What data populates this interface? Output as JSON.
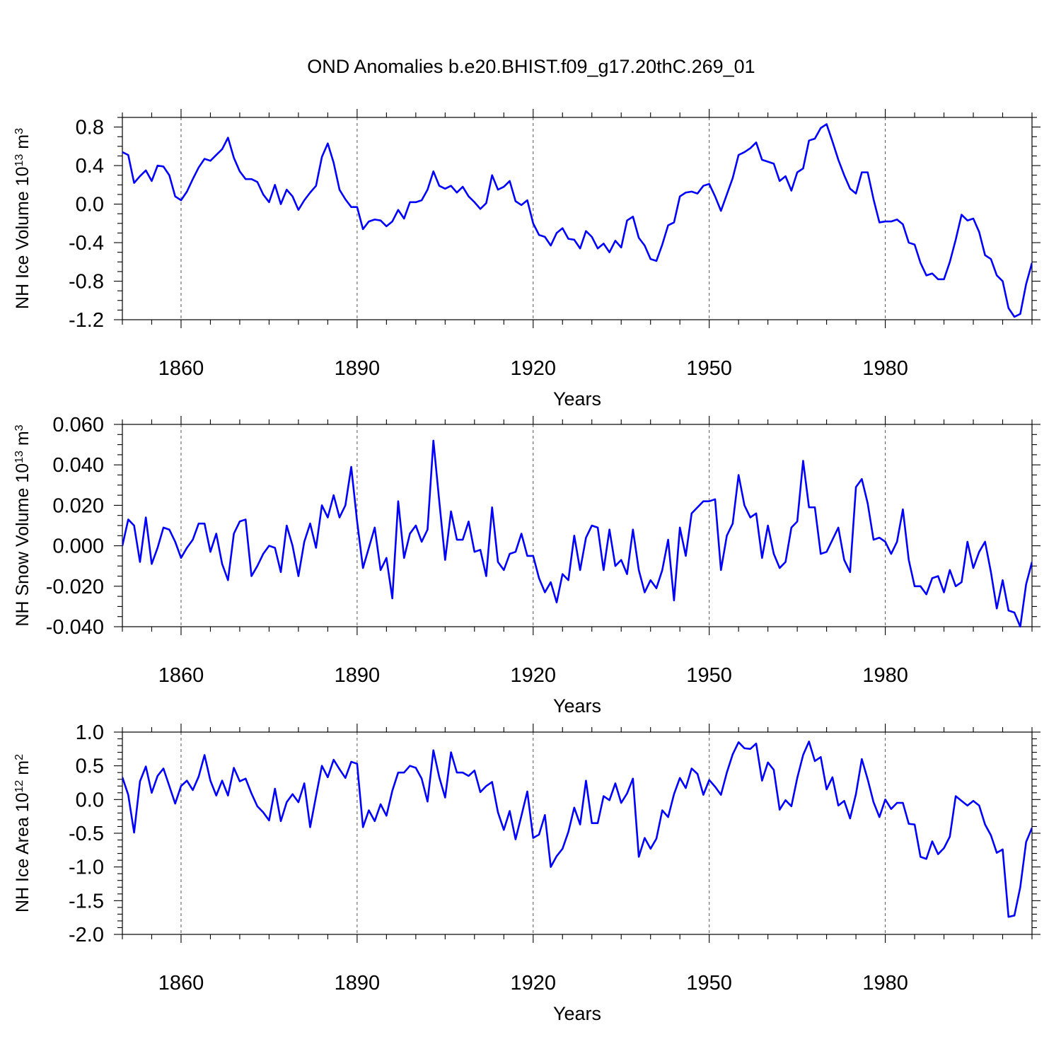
{
  "figure_title": "OND Anomalies b.e20.BHIST.f09_g17.20thC.269_01",
  "colors": {
    "series": "#0000ff",
    "axes": "#000000",
    "grid": "#555555"
  },
  "chart_data": [
    {
      "type": "line",
      "title": "",
      "xlabel": "Years",
      "ylabel_main": "NH Ice Volume 10",
      "ylabel_exp": "13",
      "ylabel_unit": " m",
      "ylabel_unit_exp": "3",
      "xlim": [
        1850,
        2005
      ],
      "ylim": [
        -1.2,
        0.9
      ],
      "ytick_values": [
        -1.2,
        -0.8,
        -0.4,
        0.0,
        0.4,
        0.8
      ],
      "ytick_labels": [
        "-1.2",
        "-0.8",
        "-0.4",
        "0.0",
        "0.4",
        "0.8"
      ],
      "ytick_minor_step": 0.1,
      "xtick_values": [
        1860,
        1890,
        1920,
        1950,
        1980
      ],
      "xtick_labels": [
        "1860",
        "1890",
        "1920",
        "1950",
        "1980"
      ],
      "grid": "dashed vertical at major x ticks",
      "series": [
        {
          "name": "NH Ice Volume",
          "x_start": 1850,
          "values": [
            0.54,
            0.51,
            0.22,
            0.29,
            0.35,
            0.24,
            0.4,
            0.39,
            0.3,
            0.08,
            0.04,
            0.13,
            0.26,
            0.38,
            0.47,
            0.45,
            0.51,
            0.57,
            0.69,
            0.48,
            0.34,
            0.26,
            0.26,
            0.23,
            0.1,
            0.02,
            0.2,
            0.0,
            0.15,
            0.08,
            -0.06,
            0.04,
            0.12,
            0.19,
            0.49,
            0.63,
            0.43,
            0.15,
            0.05,
            -0.03,
            -0.03,
            -0.26,
            -0.18,
            -0.16,
            -0.17,
            -0.23,
            -0.18,
            -0.06,
            -0.15,
            0.02,
            0.02,
            0.04,
            0.15,
            0.34,
            0.19,
            0.16,
            0.19,
            0.12,
            0.18,
            0.08,
            0.02,
            -0.05,
            0.01,
            0.3,
            0.15,
            0.18,
            0.24,
            0.03,
            -0.01,
            0.04,
            -0.2,
            -0.32,
            -0.34,
            -0.43,
            -0.3,
            -0.25,
            -0.36,
            -0.37,
            -0.46,
            -0.28,
            -0.34,
            -0.46,
            -0.41,
            -0.5,
            -0.38,
            -0.45,
            -0.17,
            -0.13,
            -0.35,
            -0.43,
            -0.57,
            -0.59,
            -0.42,
            -0.22,
            -0.19,
            0.08,
            0.12,
            0.13,
            0.11,
            0.19,
            0.21,
            0.08,
            -0.07,
            0.1,
            0.27,
            0.51,
            0.54,
            0.58,
            0.64,
            0.46,
            0.44,
            0.42,
            0.24,
            0.29,
            0.14,
            0.33,
            0.37,
            0.66,
            0.68,
            0.79,
            0.83,
            0.65,
            0.46,
            0.3,
            0.16,
            0.11,
            0.33,
            0.33,
            0.05,
            -0.19,
            -0.18,
            -0.18,
            -0.16,
            -0.21,
            -0.4,
            -0.42,
            -0.61,
            -0.74,
            -0.72,
            -0.78,
            -0.78,
            -0.6,
            -0.37,
            -0.11,
            -0.17,
            -0.15,
            -0.29,
            -0.53,
            -0.57,
            -0.74,
            -0.8,
            -1.08,
            -1.17,
            -1.14,
            -0.83,
            -0.61
          ]
        }
      ]
    },
    {
      "type": "line",
      "title": "",
      "xlabel": "Years",
      "ylabel_main": "NH Snow Volume 10",
      "ylabel_exp": "13",
      "ylabel_unit": " m",
      "ylabel_unit_exp": "3",
      "xlim": [
        1850,
        2005
      ],
      "ylim": [
        -0.04,
        0.06
      ],
      "ytick_values": [
        -0.04,
        -0.02,
        0.0,
        0.02,
        0.04,
        0.06
      ],
      "ytick_labels": [
        "-0.040",
        "-0.020",
        "0.000",
        "0.020",
        "0.040",
        "0.060"
      ],
      "ytick_minor_step": 0.005,
      "xtick_values": [
        1860,
        1890,
        1920,
        1950,
        1980
      ],
      "xtick_labels": [
        "1860",
        "1890",
        "1920",
        "1950",
        "1980"
      ],
      "grid": "dashed vertical at major x ticks",
      "series": [
        {
          "name": "NH Snow Volume",
          "x_start": 1850,
          "values": [
            0.0,
            0.013,
            0.01,
            -0.008,
            0.014,
            -0.009,
            -0.001,
            0.009,
            0.008,
            0.002,
            -0.006,
            -0.001,
            0.003,
            0.011,
            0.011,
            -0.003,
            0.006,
            -0.009,
            -0.017,
            0.006,
            0.012,
            0.013,
            -0.015,
            -0.01,
            -0.004,
            0.0,
            -0.001,
            -0.013,
            0.01,
            0.0,
            -0.015,
            0.002,
            0.011,
            -0.001,
            0.02,
            0.014,
            0.025,
            0.014,
            0.02,
            0.039,
            0.012,
            -0.011,
            -0.001,
            0.009,
            -0.012,
            -0.006,
            -0.026,
            0.022,
            -0.006,
            0.006,
            0.01,
            0.002,
            0.008,
            0.052,
            0.022,
            -0.007,
            0.017,
            0.003,
            0.003,
            0.012,
            -0.003,
            -0.002,
            -0.015,
            0.019,
            -0.008,
            -0.012,
            -0.004,
            -0.003,
            0.006,
            -0.005,
            -0.005,
            -0.016,
            -0.023,
            -0.018,
            -0.028,
            -0.014,
            -0.017,
            0.005,
            -0.012,
            0.004,
            0.01,
            0.009,
            -0.012,
            0.008,
            -0.01,
            -0.007,
            -0.014,
            0.008,
            -0.012,
            -0.023,
            -0.017,
            -0.021,
            -0.012,
            0.003,
            -0.027,
            0.009,
            -0.005,
            0.016,
            0.019,
            0.022,
            0.022,
            0.023,
            -0.012,
            0.005,
            0.011,
            0.035,
            0.02,
            0.014,
            0.016,
            -0.006,
            0.01,
            -0.004,
            -0.011,
            -0.008,
            0.009,
            0.012,
            0.042,
            0.019,
            0.019,
            -0.004,
            -0.003,
            0.003,
            0.009,
            -0.007,
            -0.013,
            0.029,
            0.033,
            0.021,
            0.003,
            0.004,
            0.002,
            -0.004,
            0.002,
            0.018,
            -0.007,
            -0.02,
            -0.02,
            -0.024,
            -0.016,
            -0.015,
            -0.023,
            -0.012,
            -0.02,
            -0.018,
            0.002,
            -0.011,
            -0.003,
            0.002,
            -0.013,
            -0.031,
            -0.017,
            -0.032,
            -0.033,
            -0.04,
            -0.019,
            -0.008
          ]
        }
      ]
    },
    {
      "type": "line",
      "title": "",
      "xlabel": "Years",
      "ylabel_main": "NH Ice Area 10",
      "ylabel_exp": "12",
      "ylabel_unit": " m",
      "ylabel_unit_exp": "2",
      "xlim": [
        1850,
        2005
      ],
      "ylim": [
        -2.0,
        1.0
      ],
      "ytick_values": [
        -2.0,
        -1.5,
        -1.0,
        -0.5,
        0.0,
        0.5,
        1.0
      ],
      "ytick_labels": [
        "-2.0",
        "-1.5",
        "-1.0",
        "-0.5",
        "0.0",
        "0.5",
        "1.0"
      ],
      "ytick_minor_step": 0.1,
      "xtick_values": [
        1860,
        1890,
        1920,
        1950,
        1980
      ],
      "xtick_labels": [
        "1860",
        "1890",
        "1920",
        "1950",
        "1980"
      ],
      "grid": "dashed vertical at major x ticks",
      "series": [
        {
          "name": "NH Ice Area",
          "x_start": 1850,
          "values": [
            0.33,
            0.07,
            -0.49,
            0.27,
            0.49,
            0.1,
            0.35,
            0.46,
            0.2,
            -0.06,
            0.2,
            0.28,
            0.14,
            0.34,
            0.66,
            0.28,
            0.06,
            0.28,
            0.06,
            0.47,
            0.27,
            0.31,
            0.09,
            -0.1,
            -0.19,
            -0.31,
            0.16,
            -0.32,
            -0.04,
            0.08,
            -0.04,
            0.24,
            -0.41,
            0.05,
            0.5,
            0.33,
            0.59,
            0.45,
            0.32,
            0.56,
            0.53,
            -0.41,
            -0.16,
            -0.32,
            -0.07,
            -0.24,
            0.13,
            0.4,
            0.4,
            0.5,
            0.47,
            0.31,
            -0.03,
            0.73,
            0.33,
            0.03,
            0.7,
            0.4,
            0.4,
            0.35,
            0.43,
            0.11,
            0.2,
            0.26,
            -0.19,
            -0.45,
            -0.17,
            -0.59,
            -0.24,
            0.12,
            -0.57,
            -0.52,
            -0.23,
            -1.0,
            -0.84,
            -0.73,
            -0.48,
            -0.12,
            -0.37,
            0.28,
            -0.35,
            -0.35,
            0.05,
            -0.01,
            0.24,
            -0.05,
            0.09,
            0.31,
            -0.85,
            -0.57,
            -0.73,
            -0.58,
            -0.16,
            -0.26,
            0.08,
            0.32,
            0.17,
            0.46,
            0.38,
            0.07,
            0.29,
            0.19,
            0.07,
            0.4,
            0.67,
            0.85,
            0.76,
            0.75,
            0.83,
            0.28,
            0.55,
            0.44,
            -0.15,
            -0.01,
            -0.1,
            0.32,
            0.66,
            0.86,
            0.57,
            0.63,
            0.15,
            0.33,
            -0.09,
            -0.02,
            -0.28,
            0.08,
            0.6,
            0.3,
            -0.04,
            -0.26,
            0.0,
            -0.14,
            -0.05,
            -0.05,
            -0.36,
            -0.37,
            -0.85,
            -0.88,
            -0.62,
            -0.81,
            -0.72,
            -0.55,
            0.05,
            -0.02,
            -0.09,
            -0.02,
            -0.09,
            -0.37,
            -0.53,
            -0.79,
            -0.74,
            -1.74,
            -1.72,
            -1.3,
            -0.63,
            -0.42
          ]
        }
      ]
    }
  ]
}
